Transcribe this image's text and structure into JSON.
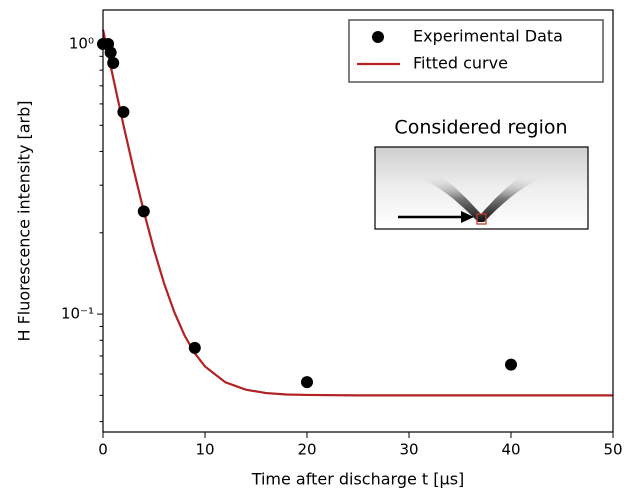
{
  "chart_data": {
    "type": "scatter",
    "xlabel": "Time after discharge t [μs]",
    "ylabel": "H Fluorescence intensity [arb]",
    "yscale": "log",
    "xlim": [
      0,
      50
    ],
    "xticks": [
      0,
      10,
      20,
      30,
      40,
      50
    ],
    "ylim": [
      0.0366,
      1.336
    ],
    "yticks": [
      {
        "value": 0.1,
        "label": "10⁻¹"
      },
      {
        "value": 1,
        "label": "10⁰"
      }
    ],
    "yminorticks": [
      0.04,
      0.05,
      0.06,
      0.07,
      0.08,
      0.09,
      0.2,
      0.3,
      0.4,
      0.5,
      0.6,
      0.7,
      0.8,
      0.9
    ],
    "legend": "upper right",
    "series": [
      {
        "name": "Experimental Data",
        "type": "scatter",
        "color": "#000000",
        "x": [
          0,
          0.5,
          0.75,
          1,
          2,
          4,
          9,
          20,
          40
        ],
        "values": [
          1.0,
          1.0,
          0.93,
          0.85,
          0.56,
          0.24,
          0.075,
          0.056,
          0.065
        ]
      },
      {
        "name": "Fitted curve",
        "type": "line",
        "color": "#b22222",
        "x": [
          0,
          1,
          2,
          3,
          4,
          5,
          6,
          7,
          8,
          9,
          10,
          12,
          14,
          16,
          18,
          20,
          25,
          30,
          40,
          50
        ],
        "values": [
          1.13,
          0.749,
          0.502,
          0.343,
          0.24,
          0.173,
          0.1295,
          0.1015,
          0.0833,
          0.0716,
          0.064,
          0.0559,
          0.0525,
          0.051,
          0.0504,
          0.0502,
          0.05,
          0.05,
          0.05,
          0.05
        ]
      }
    ],
    "annotation": "Considered region"
  }
}
